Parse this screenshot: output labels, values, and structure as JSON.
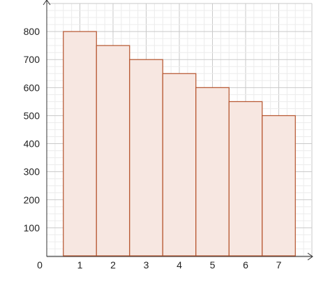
{
  "chart_data": {
    "type": "bar",
    "title": "",
    "xlabel": "",
    "ylabel": "",
    "categories": [
      "1",
      "2",
      "3",
      "4",
      "5",
      "6",
      "7"
    ],
    "values": [
      800,
      750,
      700,
      650,
      600,
      550,
      500
    ],
    "ylim": [
      0,
      900
    ],
    "yticks": [
      "100",
      "200",
      "300",
      "400",
      "500",
      "600",
      "700",
      "800"
    ],
    "origin_label": "0",
    "grid": true,
    "minor_grid": true,
    "bar_width": 1.0,
    "colors": {
      "bar_fill": "#f7e7e1",
      "bar_stroke": "#b5532c",
      "grid_major": "#c9c9c9",
      "grid_minor": "#ececec",
      "axis": "#333333"
    }
  }
}
